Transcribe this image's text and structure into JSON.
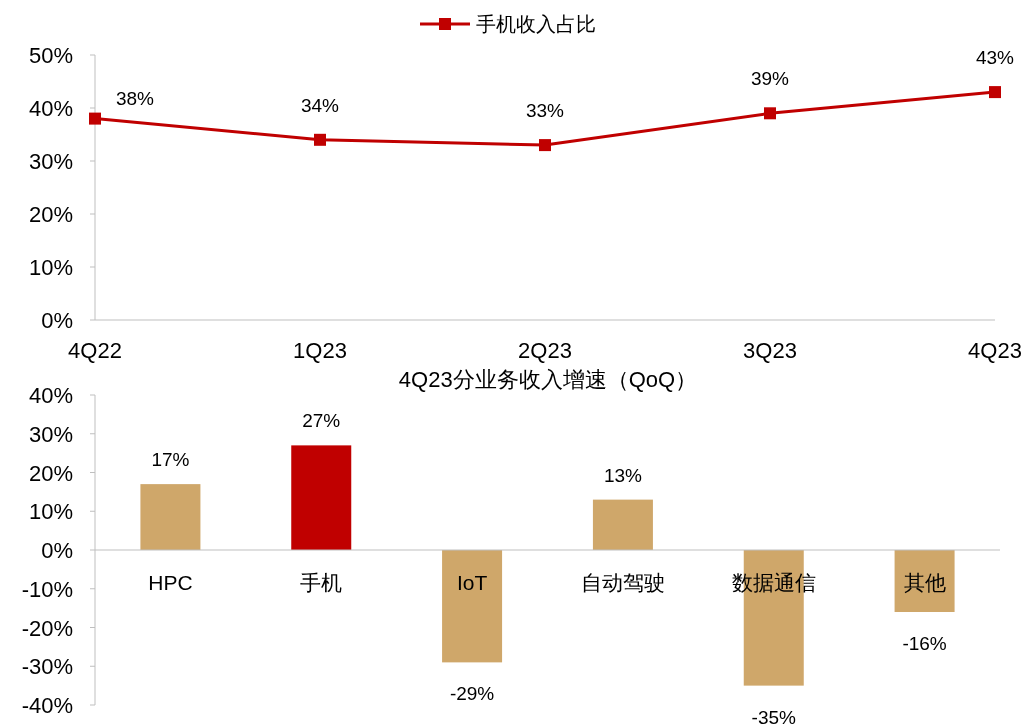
{
  "chart_data": [
    {
      "type": "line",
      "categories": [
        "4Q22",
        "1Q23",
        "2Q23",
        "3Q23",
        "4Q23"
      ],
      "series": [
        {
          "name": "手机收入占比",
          "color": "#c00000",
          "values": [
            38,
            34,
            33,
            39,
            43
          ],
          "value_labels": [
            "38%",
            "34%",
            "33%",
            "39%",
            "43%"
          ]
        }
      ],
      "ylim": [
        0,
        50
      ],
      "yticks": [
        {
          "value": 0,
          "label": "0%"
        },
        {
          "value": 10,
          "label": "10%"
        },
        {
          "value": 20,
          "label": "20%"
        },
        {
          "value": 30,
          "label": "30%"
        },
        {
          "value": 40,
          "label": "40%"
        },
        {
          "value": 50,
          "label": "50%"
        }
      ],
      "marker": "square",
      "legend": "top",
      "grid": false
    },
    {
      "type": "bar",
      "title": "4Q23分业务收入增速（QoQ）",
      "categories": [
        "HPC",
        "手机",
        "IoT",
        "自动驾驶",
        "数据通信",
        "其他"
      ],
      "values": [
        17,
        27,
        -29,
        13,
        -35,
        -16
      ],
      "colors": [
        "#cfa76a",
        "#c00000",
        "#cfa76a",
        "#cfa76a",
        "#cfa76a",
        "#cfa76a"
      ],
      "value_labels": [
        "17%",
        "27%",
        "-29%",
        "13%",
        "-35%",
        "-16%"
      ],
      "ylim": [
        -40,
        40
      ],
      "yticks": [
        {
          "value": -40,
          "label": "-40%"
        },
        {
          "value": -30,
          "label": "-30%"
        },
        {
          "value": -20,
          "label": "-20%"
        },
        {
          "value": -10,
          "label": "-10%"
        },
        {
          "value": 0,
          "label": "0%"
        },
        {
          "value": 10,
          "label": "10%"
        },
        {
          "value": 20,
          "label": "20%"
        },
        {
          "value": 30,
          "label": "30%"
        },
        {
          "value": 40,
          "label": "40%"
        }
      ],
      "grid": false
    }
  ]
}
